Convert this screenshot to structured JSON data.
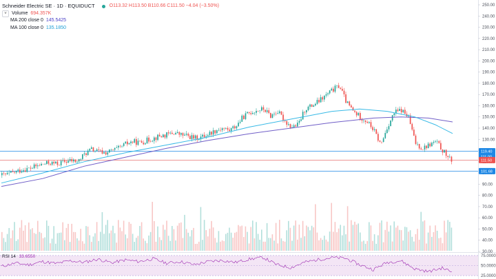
{
  "symbol": {
    "title": "Schneider Electric SE · 1D · EQUIDUCT",
    "ohlc": "O113.32  H113.50  B110.66  C111.50  −4.04 (−3.50%)"
  },
  "indicators": {
    "volume": {
      "label": "Volume",
      "value": "694.357K"
    },
    "ma200": {
      "label": "MA 200 close 0",
      "value": "145.5425"
    },
    "ma100": {
      "label": "MA 100 close 0",
      "value": "135.1850"
    },
    "rsi": {
      "label": "RSI 14",
      "value": "33.6550"
    }
  },
  "price_axis": {
    "labels": [
      "250.00",
      "240.00",
      "230.00",
      "220.00",
      "210.00",
      "200.00",
      "190.00",
      "180.00",
      "170.00",
      "160.00",
      "150.00",
      "140.00",
      "130.00",
      "120.00",
      "110.00",
      "100.00",
      "90.00",
      "80.00",
      "70.00",
      "60.00",
      "50.00",
      "40.00",
      "30.00"
    ],
    "tags": [
      {
        "text": "119.40",
        "value": 119.4,
        "color": "#1e88e5"
      },
      {
        "text": "111.00",
        "value": 114.5,
        "color": "#1e88e5"
      },
      {
        "text": "111.50",
        "value": 111.5,
        "color": "#ef5350"
      },
      {
        "text": "101.68",
        "value": 101.68,
        "color": "#1e88e5"
      }
    ]
  },
  "rsi_axis": {
    "labels": [
      "75.0000",
      "50.0000",
      "25.0000"
    ]
  },
  "colors": {
    "up": "#26a69a",
    "down": "#ef5350",
    "ma200": "#6f5dc7",
    "ma100": "#37b9e6",
    "hline": "#1e88e5",
    "rsi": "#9c27b0",
    "rsi_band": "#f3e5f5"
  },
  "chart_data": {
    "type": "candlestick",
    "ylim": [
      25,
      255
    ],
    "horizontal_levels": [
      119.4,
      111.5,
      101.68
    ],
    "price_path": [
      [
        0,
        98
      ],
      [
        10,
        99
      ],
      [
        20,
        101
      ],
      [
        30,
        103
      ],
      [
        40,
        104
      ],
      [
        50,
        106
      ],
      [
        60,
        108
      ],
      [
        70,
        109
      ],
      [
        80,
        108
      ],
      [
        90,
        110
      ],
      [
        100,
        111
      ],
      [
        110,
        110
      ],
      [
        120,
        117
      ],
      [
        130,
        121
      ],
      [
        140,
        119
      ],
      [
        150,
        118
      ],
      [
        160,
        120
      ],
      [
        170,
        122
      ],
      [
        180,
        126
      ],
      [
        190,
        128
      ],
      [
        200,
        127
      ],
      [
        210,
        129
      ],
      [
        220,
        131
      ],
      [
        230,
        133
      ],
      [
        240,
        134
      ],
      [
        250,
        136
      ],
      [
        260,
        134
      ],
      [
        270,
        133
      ],
      [
        280,
        131
      ],
      [
        290,
        132
      ],
      [
        300,
        135
      ],
      [
        310,
        138
      ],
      [
        320,
        140
      ],
      [
        330,
        138
      ],
      [
        340,
        142
      ],
      [
        350,
        150
      ],
      [
        360,
        154
      ],
      [
        370,
        156
      ],
      [
        380,
        157
      ],
      [
        390,
        151
      ],
      [
        400,
        155
      ],
      [
        410,
        147
      ],
      [
        420,
        141
      ],
      [
        430,
        143
      ],
      [
        440,
        157
      ],
      [
        450,
        160
      ],
      [
        460,
        164
      ],
      [
        470,
        169
      ],
      [
        480,
        174
      ],
      [
        490,
        178
      ],
      [
        500,
        163
      ],
      [
        510,
        155
      ],
      [
        520,
        150
      ],
      [
        530,
        146
      ],
      [
        540,
        138
      ],
      [
        550,
        125
      ],
      [
        560,
        142
      ],
      [
        570,
        154
      ],
      [
        580,
        156
      ],
      [
        590,
        150
      ],
      [
        600,
        127
      ],
      [
        610,
        122
      ],
      [
        620,
        125
      ],
      [
        630,
        128
      ],
      [
        640,
        120
      ],
      [
        650,
        112
      ],
      [
        655,
        111.5
      ]
    ],
    "ma200_path": [
      [
        0,
        88
      ],
      [
        60,
        95
      ],
      [
        120,
        106
      ],
      [
        180,
        114
      ],
      [
        240,
        122
      ],
      [
        300,
        129
      ],
      [
        360,
        135
      ],
      [
        420,
        140
      ],
      [
        480,
        145
      ],
      [
        540,
        149
      ],
      [
        580,
        150
      ],
      [
        620,
        149
      ],
      [
        655,
        145.5
      ]
    ],
    "ma100_path": [
      [
        0,
        91
      ],
      [
        60,
        100
      ],
      [
        120,
        110
      ],
      [
        180,
        118
      ],
      [
        240,
        125
      ],
      [
        300,
        132
      ],
      [
        360,
        141
      ],
      [
        420,
        148
      ],
      [
        480,
        155
      ],
      [
        520,
        157
      ],
      [
        560,
        155
      ],
      [
        600,
        150
      ],
      [
        630,
        143
      ],
      [
        655,
        135.2
      ]
    ],
    "rsi_path": [
      [
        0,
        48
      ],
      [
        20,
        56
      ],
      [
        40,
        52
      ],
      [
        60,
        60
      ],
      [
        80,
        55
      ],
      [
        100,
        62
      ],
      [
        120,
        58
      ],
      [
        140,
        66
      ],
      [
        160,
        57
      ],
      [
        180,
        64
      ],
      [
        200,
        60
      ],
      [
        220,
        67
      ],
      [
        240,
        56
      ],
      [
        260,
        60
      ],
      [
        280,
        52
      ],
      [
        300,
        60
      ],
      [
        320,
        63
      ],
      [
        340,
        58
      ],
      [
        360,
        66
      ],
      [
        380,
        70
      ],
      [
        400,
        52
      ],
      [
        420,
        45
      ],
      [
        440,
        58
      ],
      [
        460,
        65
      ],
      [
        480,
        70
      ],
      [
        500,
        68
      ],
      [
        520,
        52
      ],
      [
        540,
        40
      ],
      [
        560,
        58
      ],
      [
        580,
        62
      ],
      [
        600,
        42
      ],
      [
        620,
        35
      ],
      [
        640,
        44
      ],
      [
        655,
        33.7
      ]
    ],
    "rsi_ylim": [
      20,
      80
    ]
  }
}
